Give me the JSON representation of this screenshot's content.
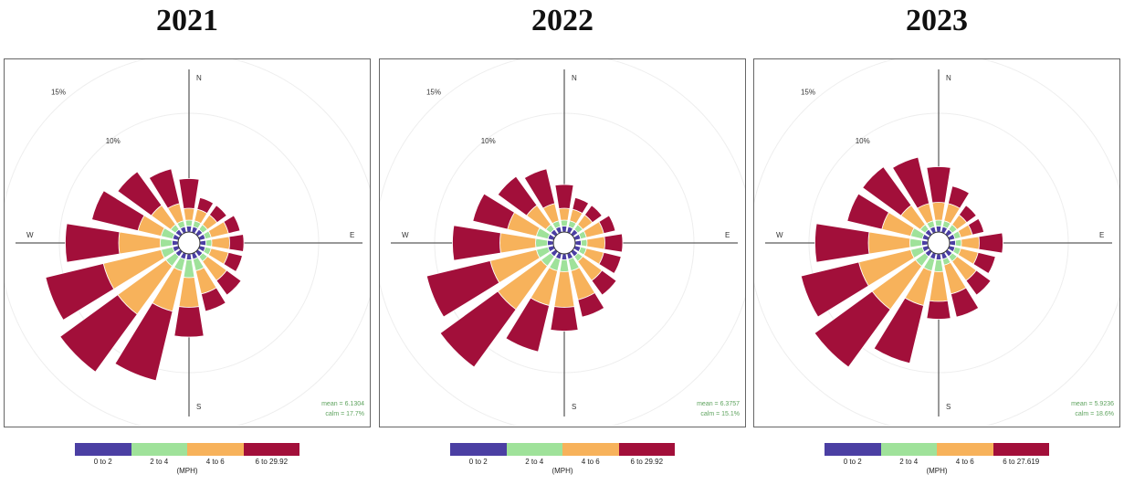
{
  "chart_data": [
    {
      "type": "windrose",
      "title": "2021",
      "directions": [
        "N",
        "NNE",
        "NE",
        "ENE",
        "E",
        "ESE",
        "SE",
        "SSE",
        "S",
        "SSW",
        "SW",
        "WSW",
        "W",
        "WNW",
        "NW",
        "NNW"
      ],
      "units": "(MPH)",
      "bins": [
        "0 to 2",
        "2 to 4",
        "4 to 6",
        "6 to 29.92"
      ],
      "colors": [
        "#4b3fa3",
        "#9fe29a",
        "#f7b25b",
        "#a20f3a"
      ],
      "frequency_percent": [
        [
          0.5,
          0.5,
          1.0,
          2.5
        ],
        [
          0.5,
          0.5,
          1.0,
          1.0
        ],
        [
          0.5,
          0.5,
          1.0,
          1.0
        ],
        [
          0.5,
          0.5,
          1.5,
          1.0
        ],
        [
          0.5,
          0.5,
          1.5,
          1.2
        ],
        [
          0.5,
          0.5,
          1.5,
          1.2
        ],
        [
          0.5,
          0.5,
          2.0,
          1.5
        ],
        [
          0.5,
          1.0,
          2.0,
          1.5
        ],
        [
          0.5,
          1.5,
          2.5,
          2.5
        ],
        [
          0.5,
          1.0,
          3.5,
          6.0
        ],
        [
          0.5,
          1.0,
          5.0,
          6.0
        ],
        [
          0.5,
          1.0,
          5.0,
          5.0
        ],
        [
          0.5,
          1.0,
          3.5,
          4.5
        ],
        [
          0.5,
          1.0,
          2.0,
          4.0
        ],
        [
          0.5,
          0.5,
          2.0,
          3.5
        ],
        [
          0.5,
          0.5,
          1.5,
          3.0
        ]
      ],
      "ring_labels": [
        "10%",
        "15%"
      ],
      "stats": [
        "mean = 6.1304",
        "calm = 17.7%"
      ],
      "legend_labels": [
        "0 to 2",
        "2 to 4",
        "4 to 6",
        "6 to 29.92"
      ]
    },
    {
      "type": "windrose",
      "title": "2022",
      "directions": [
        "N",
        "NNE",
        "NE",
        "ENE",
        "E",
        "ESE",
        "SE",
        "SSE",
        "S",
        "SSW",
        "SW",
        "WSW",
        "W",
        "WNW",
        "NW",
        "NNW"
      ],
      "units": "(MPH)",
      "bins": [
        "0 to 2",
        "2 to 4",
        "4 to 6",
        "6 to 29.92"
      ],
      "colors": [
        "#4b3fa3",
        "#9fe29a",
        "#f7b25b",
        "#a20f3a"
      ],
      "frequency_percent": [
        [
          0.5,
          0.5,
          1.0,
          2.0
        ],
        [
          0.5,
          0.5,
          1.0,
          1.0
        ],
        [
          0.5,
          0.5,
          1.0,
          1.0
        ],
        [
          0.5,
          0.5,
          1.5,
          1.0
        ],
        [
          0.5,
          0.5,
          1.5,
          1.5
        ],
        [
          0.5,
          0.5,
          1.5,
          1.5
        ],
        [
          0.5,
          0.5,
          2.0,
          1.5
        ],
        [
          0.5,
          1.0,
          2.5,
          1.5
        ],
        [
          0.5,
          1.0,
          3.0,
          2.0
        ],
        [
          0.5,
          1.0,
          3.0,
          4.0
        ],
        [
          0.5,
          1.0,
          4.5,
          6.0
        ],
        [
          0.5,
          1.0,
          4.0,
          5.5
        ],
        [
          0.5,
          1.0,
          3.0,
          4.0
        ],
        [
          0.5,
          1.0,
          2.5,
          3.0
        ],
        [
          0.5,
          0.5,
          2.0,
          3.0
        ],
        [
          0.5,
          0.5,
          1.5,
          3.0
        ]
      ],
      "ring_labels": [
        "10%",
        "15%"
      ],
      "stats": [
        "mean = 6.3757",
        "calm = 15.1%"
      ],
      "legend_labels": [
        "0 to 2",
        "2 to 4",
        "4 to 6",
        "6 to 29.92"
      ]
    },
    {
      "type": "windrose",
      "title": "2023",
      "directions": [
        "N",
        "NNE",
        "NE",
        "ENE",
        "E",
        "ESE",
        "SE",
        "SSE",
        "S",
        "SSW",
        "SW",
        "WSW",
        "W",
        "WNW",
        "NW",
        "NNW"
      ],
      "units": "(MPH)",
      "bins": [
        "0 to 2",
        "2 to 4",
        "4 to 6",
        "6 to 27.619"
      ],
      "colors": [
        "#4b3fa3",
        "#9fe29a",
        "#f7b25b",
        "#a20f3a"
      ],
      "frequency_percent": [
        [
          0.5,
          0.5,
          1.5,
          3.0
        ],
        [
          0.5,
          0.5,
          1.5,
          1.5
        ],
        [
          0.5,
          0.5,
          1.0,
          1.0
        ],
        [
          0.5,
          0.5,
          1.0,
          1.0
        ],
        [
          0.5,
          0.5,
          1.5,
          2.0
        ],
        [
          0.5,
          0.5,
          1.5,
          1.5
        ],
        [
          0.5,
          0.5,
          2.0,
          1.5
        ],
        [
          0.5,
          0.5,
          2.5,
          2.0
        ],
        [
          0.5,
          1.0,
          2.5,
          1.5
        ],
        [
          0.5,
          1.0,
          3.0,
          5.0
        ],
        [
          0.5,
          1.0,
          4.5,
          6.0
        ],
        [
          0.5,
          1.0,
          4.5,
          5.0
        ],
        [
          0.5,
          1.0,
          3.5,
          4.5
        ],
        [
          0.5,
          1.0,
          2.5,
          3.0
        ],
        [
          0.5,
          0.5,
          2.0,
          4.0
        ],
        [
          0.5,
          0.5,
          1.5,
          4.0
        ]
      ],
      "ring_labels": [
        "10%",
        "15%"
      ],
      "stats": [
        "mean = 5.9236",
        "calm = 18.6%"
      ],
      "legend_labels": [
        "0 to 2",
        "2 to 4",
        "4 to 6",
        "6 to 27.619"
      ]
    }
  ]
}
